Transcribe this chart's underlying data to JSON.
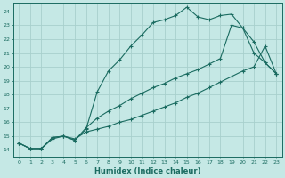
{
  "xlabel": "Humidex (Indice chaleur)",
  "bg_color": "#c5e8e5",
  "grid_color": "#a8d0cc",
  "line_color": "#1a6b60",
  "xlim": [
    -0.5,
    23.5
  ],
  "ylim": [
    13.5,
    24.6
  ],
  "xticks": [
    0,
    1,
    2,
    3,
    4,
    5,
    6,
    7,
    8,
    9,
    10,
    11,
    12,
    13,
    14,
    15,
    16,
    17,
    18,
    19,
    20,
    21,
    22,
    23
  ],
  "yticks": [
    14,
    15,
    16,
    17,
    18,
    19,
    20,
    21,
    22,
    23,
    24
  ],
  "line1_x": [
    0,
    1,
    2,
    3,
    4,
    5,
    6,
    7,
    8,
    9,
    10,
    11,
    12,
    13,
    14,
    15,
    16,
    17,
    18,
    19,
    20,
    21,
    22,
    23
  ],
  "line1_y": [
    14.5,
    14.1,
    14.1,
    14.9,
    15.0,
    14.7,
    15.5,
    18.2,
    19.7,
    20.5,
    21.5,
    22.3,
    23.2,
    23.4,
    23.7,
    24.3,
    23.6,
    23.4,
    23.7,
    23.8,
    22.8,
    21.8,
    20.3,
    19.5
  ],
  "line2_x": [
    0,
    1,
    2,
    3,
    4,
    5,
    6,
    7,
    8,
    9,
    10,
    11,
    12,
    13,
    14,
    15,
    16,
    17,
    18,
    19,
    20,
    21,
    22,
    23
  ],
  "line2_y": [
    14.5,
    14.1,
    14.1,
    14.8,
    15.0,
    14.8,
    15.3,
    15.5,
    15.7,
    16.0,
    16.2,
    16.5,
    16.8,
    17.1,
    17.4,
    17.8,
    18.1,
    18.5,
    18.9,
    19.3,
    19.7,
    20.0,
    21.5,
    19.5
  ],
  "line3_x": [
    0,
    1,
    2,
    3,
    4,
    5,
    6,
    7,
    8,
    9,
    10,
    11,
    12,
    13,
    14,
    15,
    16,
    17,
    18,
    19,
    20,
    21,
    22,
    23
  ],
  "line3_y": [
    14.5,
    14.1,
    14.1,
    14.9,
    15.0,
    14.7,
    15.6,
    16.3,
    16.8,
    17.2,
    17.7,
    18.1,
    18.5,
    18.8,
    19.2,
    19.5,
    19.8,
    20.2,
    20.6,
    23.0,
    22.8,
    21.0,
    20.3,
    19.5
  ]
}
